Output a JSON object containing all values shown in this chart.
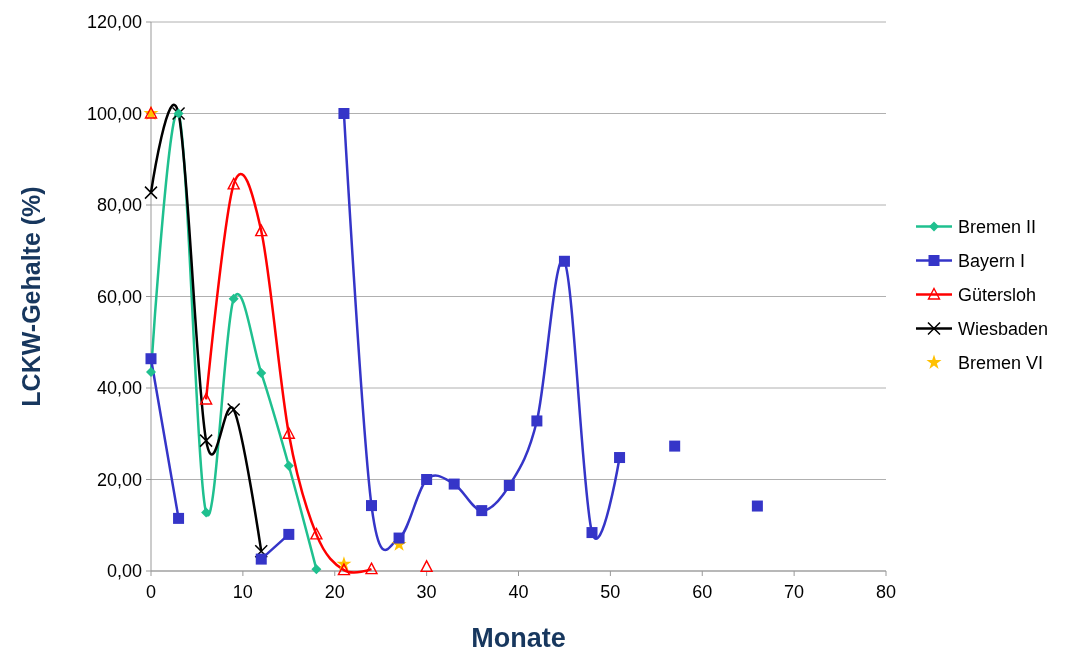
{
  "chart_data": {
    "type": "line",
    "xlabel": "Monate",
    "ylabel": "LCKW-Gehalte (%)",
    "xlim": [
      0,
      80
    ],
    "xticks": [
      0,
      10,
      20,
      30,
      40,
      50,
      60,
      70,
      80
    ],
    "ylim": [
      0,
      120
    ],
    "yticks": [
      {
        "value": 0,
        "label": "0,00"
      },
      {
        "value": 20,
        "label": "20,00"
      },
      {
        "value": 40,
        "label": "40,00"
      },
      {
        "value": 60,
        "label": "60,00"
      },
      {
        "value": 80,
        "label": "80,00"
      },
      {
        "value": 100,
        "label": "100,00"
      },
      {
        "value": 120,
        "label": "120,00"
      }
    ],
    "grid": "y",
    "legend": "right",
    "series": [
      {
        "name": "Bremen II",
        "color": "#1fc08f",
        "marker": "diamond",
        "x": [
          0,
          3,
          6,
          9,
          12,
          15,
          18
        ],
        "values": [
          43.5,
          100,
          12.8,
          59.5,
          43.3,
          23,
          0.4
        ]
      },
      {
        "name": "Bayern I",
        "color": "#3535c8",
        "marker": "square",
        "x": [
          0,
          3,
          6,
          12,
          15,
          18,
          21,
          24,
          27,
          30,
          33,
          36,
          39,
          42,
          45,
          48,
          51,
          54,
          57,
          60,
          66
        ],
        "values": [
          46.4,
          11.5,
          null,
          2.6,
          8,
          null,
          100,
          14.3,
          7.2,
          20,
          19,
          13.2,
          18.7,
          32.8,
          67.7,
          8.4,
          24.8,
          null,
          27.3,
          null,
          14.2
        ]
      },
      {
        "name": "Gütersloh",
        "color": "#ff0000",
        "marker": "triangle",
        "x": [
          0,
          3,
          6,
          9,
          12,
          15,
          18,
          21,
          24,
          27,
          30
        ],
        "values": [
          100,
          null,
          37.5,
          84.5,
          74.3,
          30,
          8,
          0.2,
          0.4,
          null,
          0.9
        ]
      },
      {
        "name": "Wiesbaden",
        "color": "#000000",
        "marker": "cross",
        "x": [
          0,
          3,
          6,
          9,
          12
        ],
        "values": [
          82.7,
          100,
          28.5,
          35.3,
          4.3
        ]
      },
      {
        "name": "Bremen VI",
        "type": "scatter",
        "color": "#ffc000",
        "marker": "star",
        "x": [
          0,
          21,
          27
        ],
        "values": [
          100,
          1.5,
          5.8
        ]
      }
    ]
  }
}
